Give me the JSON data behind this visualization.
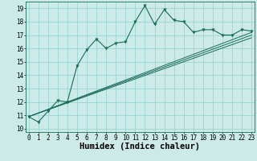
{
  "xlabel": "Humidex (Indice chaleur)",
  "ylabel": "",
  "background_color": "#cceae7",
  "grid_color": "#99d5d0",
  "line_color": "#1a6b5a",
  "x_data": [
    0,
    1,
    2,
    3,
    4,
    5,
    6,
    7,
    8,
    9,
    10,
    11,
    12,
    13,
    14,
    15,
    16,
    17,
    18,
    19,
    20,
    21,
    22,
    23
  ],
  "y_data": [
    10.9,
    10.5,
    11.3,
    12.1,
    12.0,
    14.7,
    15.9,
    16.7,
    16.0,
    16.4,
    16.5,
    18.0,
    19.2,
    17.8,
    18.9,
    18.1,
    18.0,
    17.2,
    17.4,
    17.4,
    17.0,
    17.0,
    17.4,
    17.3
  ],
  "trend1_x": [
    0,
    23
  ],
  "trend1_y": [
    10.9,
    16.8
  ],
  "trend2_x": [
    0,
    23
  ],
  "trend2_y": [
    10.9,
    17.2
  ],
  "trend3_x": [
    0,
    23
  ],
  "trend3_y": [
    10.9,
    17.0
  ],
  "xlim": [
    -0.3,
    23.3
  ],
  "ylim": [
    9.75,
    19.5
  ],
  "yticks": [
    10,
    11,
    12,
    13,
    14,
    15,
    16,
    17,
    18,
    19
  ],
  "xticks": [
    0,
    1,
    2,
    3,
    4,
    5,
    6,
    7,
    8,
    9,
    10,
    11,
    12,
    13,
    14,
    15,
    16,
    17,
    18,
    19,
    20,
    21,
    22,
    23
  ],
  "tick_fontsize": 5.5,
  "xlabel_fontsize": 7.5,
  "xlabel_fontweight": "bold"
}
